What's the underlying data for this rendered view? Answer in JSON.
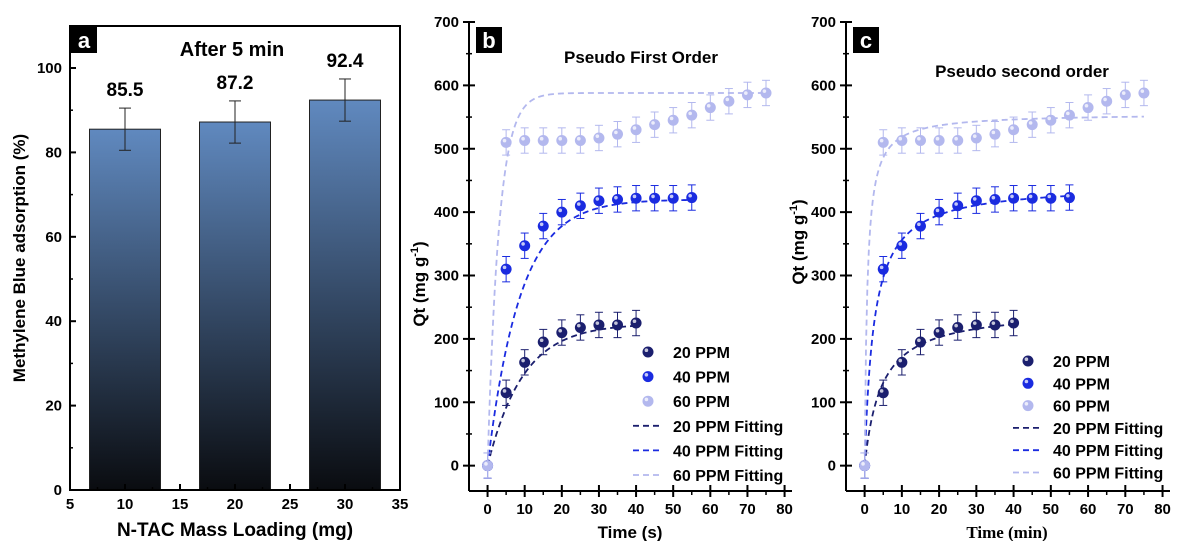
{
  "chart_data": [
    {
      "type": "bar",
      "panel_label": "a",
      "title": "After 5 min",
      "xlabel": "N-TAC Mass Loading (mg)",
      "ylabel": "Methylene Blue adsorption (%)",
      "xlim": [
        5,
        35
      ],
      "ylim": [
        0,
        100
      ],
      "xticks": [
        "5",
        "10",
        "15",
        "20",
        "25",
        "30",
        "35"
      ],
      "yticks": [
        "0",
        "20",
        "40",
        "60",
        "80",
        "100"
      ],
      "categories": [
        10,
        20,
        30
      ],
      "values": [
        85.5,
        87.2,
        92.4
      ],
      "errors": [
        5,
        5,
        5
      ],
      "data_labels": [
        "85.5",
        "87.2",
        "92.4"
      ],
      "bar_gradient": [
        "#6089bf",
        "#0a0c10"
      ]
    },
    {
      "type": "scatter",
      "panel_label": "b",
      "title": "Pseudo First Order",
      "xlabel": "Time (s)",
      "ylabel": "Qt (mg g",
      "ylabel_sup": "-1",
      "ylabel_end": ")",
      "xlim": [
        -5,
        82
      ],
      "ylim": [
        -40,
        700
      ],
      "xticks": [
        "0",
        "10",
        "20",
        "30",
        "40",
        "50",
        "60",
        "70",
        "80"
      ],
      "yticks": [
        "0",
        "100",
        "200",
        "300",
        "400",
        "500",
        "600",
        "700"
      ],
      "legend": {
        "position": "bottom-right",
        "entries": [
          "20 PPM",
          "40 PPM",
          "60 PPM",
          "20 PPM Fitting",
          "40 PPM Fitting",
          "60 PPM Fitting"
        ]
      },
      "series": [
        {
          "name": "20 PPM",
          "color": "#1b1f6e",
          "x": [
            0,
            5,
            10,
            15,
            20,
            25,
            30,
            35,
            40
          ],
          "y": [
            0,
            115,
            163,
            195,
            210,
            218,
            222,
            222,
            225
          ],
          "error": 20
        },
        {
          "name": "40 PPM",
          "color": "#1a2be0",
          "x": [
            0,
            5,
            10,
            15,
            20,
            25,
            30,
            35,
            40,
            45,
            50,
            55
          ],
          "y": [
            0,
            310,
            347,
            378,
            400,
            410,
            418,
            420,
            422,
            422,
            422,
            423
          ],
          "error": 20
        },
        {
          "name": "60 PPM",
          "color": "#b3b8ee",
          "x": [
            0,
            5,
            10,
            15,
            20,
            25,
            30,
            35,
            40,
            45,
            50,
            55,
            60,
            65,
            70,
            75
          ],
          "y": [
            0,
            510,
            513,
            513,
            513,
            513,
            517,
            523,
            530,
            538,
            545,
            553,
            565,
            575,
            585,
            588
          ],
          "error": 20
        }
      ],
      "fits": [
        {
          "name": "20 PPM Fitting",
          "color": "#1b1f6e",
          "model": "pfo",
          "qe": 224,
          "k": 0.105,
          "xmax": 40
        },
        {
          "name": "40 PPM Fitting",
          "color": "#1a2be0",
          "model": "pfo",
          "qe": 420,
          "k": 0.115,
          "xmax": 55
        },
        {
          "name": "60 PPM Fitting",
          "color": "#b3b8ee",
          "model": "pfo",
          "qe": 588,
          "k": 0.33,
          "xmax": 75
        }
      ]
    },
    {
      "type": "scatter",
      "panel_label": "c",
      "title": "Pseudo second order",
      "xlabel": "Time (min)",
      "ylabel": "Qt (mg g",
      "ylabel_sup": "-1",
      "ylabel_end": ")",
      "xlim": [
        -5,
        82
      ],
      "ylim": [
        -40,
        700
      ],
      "xticks": [
        "0",
        "10",
        "20",
        "30",
        "40",
        "50",
        "60",
        "70",
        "80"
      ],
      "yticks": [
        "0",
        "100",
        "200",
        "300",
        "400",
        "500",
        "600",
        "700"
      ],
      "legend": {
        "position": "bottom-right",
        "entries": [
          "20 PPM",
          "40 PPM",
          "60 PPM",
          "20 PPM Fitting",
          "40 PPM Fitting",
          "60 PPM Fitting"
        ]
      },
      "series": [
        {
          "name": "20 PPM",
          "color": "#1b1f6e",
          "x": [
            0,
            5,
            10,
            15,
            20,
            25,
            30,
            35,
            40
          ],
          "y": [
            0,
            115,
            163,
            195,
            210,
            218,
            222,
            222,
            225
          ],
          "error": 20
        },
        {
          "name": "40 PPM",
          "color": "#1a2be0",
          "x": [
            0,
            5,
            10,
            15,
            20,
            25,
            30,
            35,
            40,
            45,
            50,
            55
          ],
          "y": [
            0,
            310,
            347,
            378,
            400,
            410,
            418,
            420,
            422,
            422,
            422,
            423
          ],
          "error": 20
        },
        {
          "name": "60 PPM",
          "color": "#b3b8ee",
          "x": [
            0,
            5,
            10,
            15,
            20,
            25,
            30,
            35,
            40,
            45,
            50,
            55,
            60,
            65,
            70,
            75
          ],
          "y": [
            0,
            510,
            513,
            513,
            513,
            513,
            517,
            523,
            530,
            538,
            545,
            553,
            565,
            575,
            585,
            588
          ],
          "error": 20
        }
      ],
      "fits": [
        {
          "name": "20 PPM Fitting",
          "color": "#1b1f6e",
          "model": "pso",
          "qe": 248,
          "k": 0.0009,
          "xmax": 40
        },
        {
          "name": "40 PPM Fitting",
          "color": "#1a2be0",
          "model": "pso",
          "qe": 445,
          "k": 0.0009,
          "xmax": 55
        },
        {
          "name": "60 PPM Fitting",
          "color": "#b3b8ee",
          "model": "pso",
          "qe": 556,
          "k": 0.0025,
          "xmax": 75
        }
      ]
    }
  ]
}
